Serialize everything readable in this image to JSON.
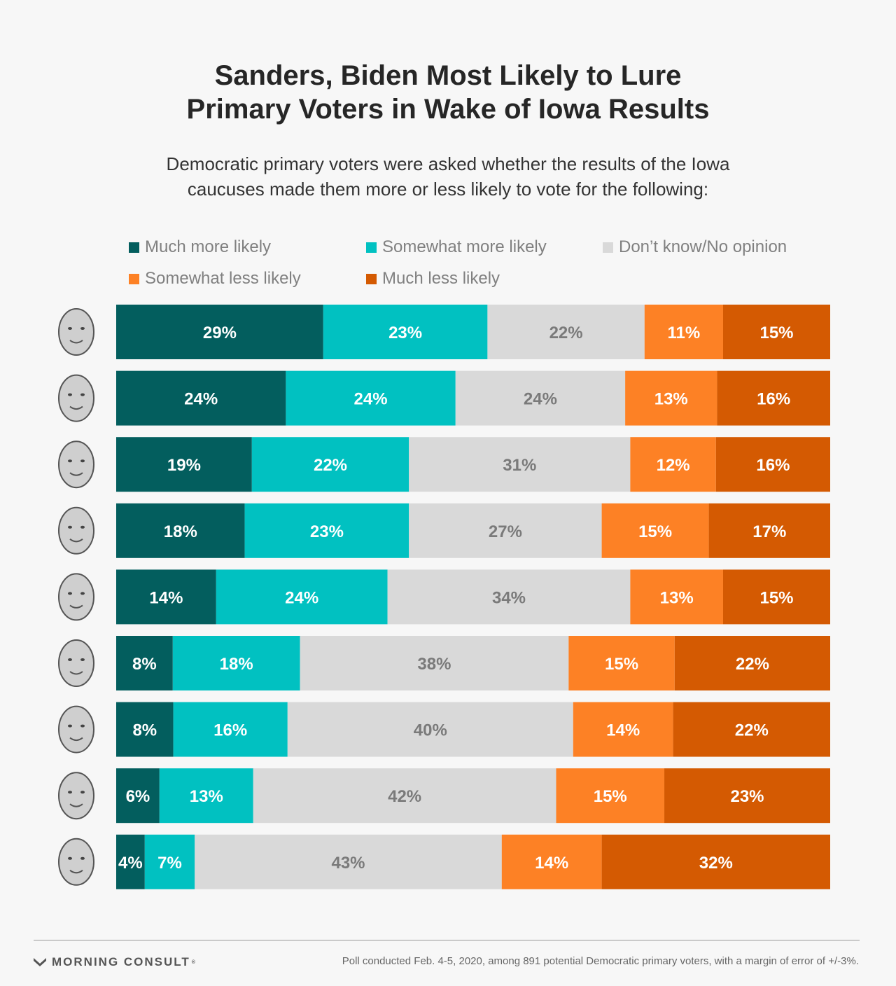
{
  "header": {
    "title_line1": "Sanders, Biden Most Likely to Lure",
    "title_line2": "Primary Voters in Wake of Iowa Results",
    "subtitle_line1": "Democratic primary voters were asked whether the results of the Iowa",
    "subtitle_line2": "caucuses made them more or less likely to vote for the following:"
  },
  "legend": [
    {
      "label": "Much more likely",
      "color": "#035e5e"
    },
    {
      "label": "Somewhat more likely",
      "color": "#01c1c1"
    },
    {
      "label": "Don’t know/No opinion",
      "color": "#d9d9d9"
    },
    {
      "label": "Somewhat less likely",
      "color": "#fd8125"
    },
    {
      "label": "Much less likely",
      "color": "#d45a02"
    }
  ],
  "chart_data": {
    "type": "bar",
    "orientation": "horizontal",
    "stacked": true,
    "row_labels": "candidate portrait photos (no printed names)",
    "series": [
      {
        "name": "Much more likely",
        "color": "#035e5e",
        "label_color": "#ffffff",
        "values": [
          29,
          24,
          19,
          18,
          14,
          8,
          8,
          6,
          4
        ]
      },
      {
        "name": "Somewhat more likely",
        "color": "#01c1c1",
        "label_color": "#ffffff",
        "values": [
          23,
          24,
          22,
          23,
          24,
          18,
          16,
          13,
          7
        ]
      },
      {
        "name": "Don’t know/No opinion",
        "color": "#d9d9d9",
        "label_color": "#7a7a7a",
        "values": [
          22,
          24,
          31,
          27,
          34,
          38,
          40,
          42,
          43
        ]
      },
      {
        "name": "Somewhat less likely",
        "color": "#fd8125",
        "label_color": "#ffffff",
        "values": [
          11,
          13,
          12,
          15,
          13,
          15,
          14,
          15,
          14
        ]
      },
      {
        "name": "Much less likely",
        "color": "#d45a02",
        "label_color": "#ffffff",
        "values": [
          15,
          16,
          16,
          17,
          15,
          22,
          22,
          23,
          32
        ]
      }
    ],
    "value_suffix": "%",
    "xlim": [
      0,
      100
    ],
    "legend_position": "top"
  },
  "footer": {
    "brand": "MORNING CONSULT",
    "brand_mark": "®",
    "note": "Poll conducted Feb. 4-5, 2020, among 891 potential Democratic primary voters, with a margin of error of +/-3%."
  }
}
